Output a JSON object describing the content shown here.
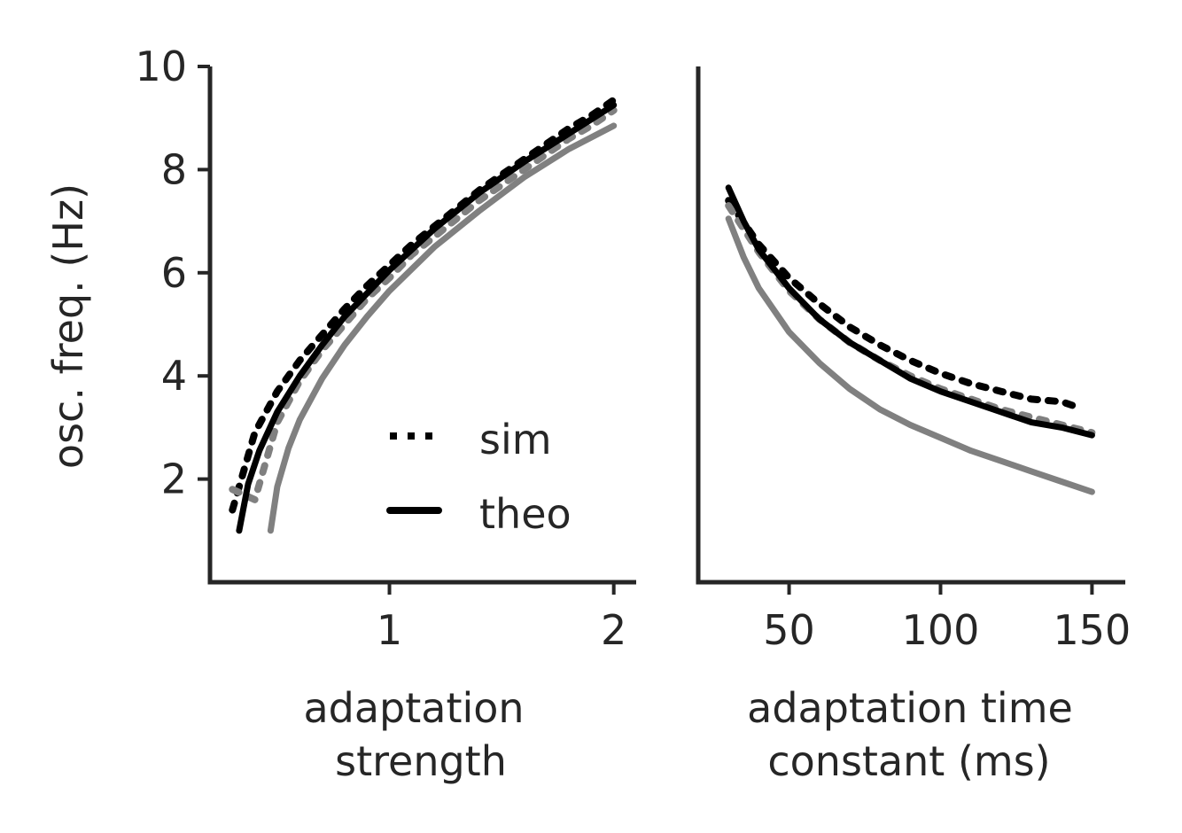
{
  "chart_data": [
    {
      "type": "line",
      "id": "left",
      "xlabel": [
        "adaptation",
        "strength"
      ],
      "ylabel": "osc. freq. (Hz)",
      "xlim": [
        0.2,
        2.1
      ],
      "ylim": [
        0.0,
        10.0
      ],
      "xticks": [
        1,
        2
      ],
      "xtick_labels": [
        "1",
        "2"
      ],
      "yticks": [
        2,
        4,
        6,
        8,
        10
      ],
      "ytick_labels": [
        "2",
        "4",
        "6",
        "8",
        "10"
      ],
      "series": [
        {
          "name": "sim",
          "color": "#000000",
          "style": "dotted",
          "x": [
            0.3,
            0.4,
            0.5,
            0.6,
            0.7,
            0.8,
            0.9,
            1.0,
            1.1,
            1.2,
            1.3,
            1.4,
            1.5,
            1.6,
            1.7,
            1.8,
            1.9,
            2.0
          ],
          "y": [
            1.4,
            2.9,
            3.7,
            4.3,
            4.8,
            5.3,
            5.75,
            6.15,
            6.55,
            6.9,
            7.25,
            7.6,
            7.9,
            8.2,
            8.5,
            8.8,
            9.05,
            9.35
          ]
        },
        {
          "color": "#808080",
          "style": "dotted",
          "x": [
            0.3,
            0.4,
            0.5,
            0.6,
            0.7,
            0.8,
            0.9,
            1.0,
            1.1,
            1.2,
            1.3,
            1.4,
            1.5,
            1.6,
            1.7,
            1.8,
            1.9,
            2.0
          ],
          "y": [
            1.8,
            1.6,
            3.1,
            3.9,
            4.5,
            5.0,
            5.5,
            5.9,
            6.35,
            6.7,
            7.05,
            7.4,
            7.7,
            8.0,
            8.3,
            8.6,
            8.85,
            9.15
          ]
        },
        {
          "name": "theo",
          "color": "#000000",
          "style": "solid",
          "x": [
            0.33,
            0.37,
            0.42,
            0.5,
            0.6,
            0.7,
            0.8,
            0.9,
            1.0,
            1.2,
            1.4,
            1.6,
            1.8,
            2.0
          ],
          "y": [
            1.0,
            1.9,
            2.55,
            3.3,
            4.0,
            4.6,
            5.15,
            5.6,
            6.05,
            6.85,
            7.55,
            8.15,
            8.7,
            9.25
          ]
        },
        {
          "color": "#808080",
          "style": "solid",
          "x": [
            0.47,
            0.5,
            0.55,
            0.6,
            0.7,
            0.8,
            0.9,
            1.0,
            1.2,
            1.4,
            1.6,
            1.8,
            2.0
          ],
          "y": [
            1.0,
            1.85,
            2.6,
            3.15,
            3.95,
            4.6,
            5.15,
            5.65,
            6.5,
            7.2,
            7.85,
            8.4,
            8.85
          ]
        }
      ],
      "legend": {
        "location": "lower-right",
        "entries": [
          "sim",
          "theo"
        ]
      }
    },
    {
      "type": "line",
      "id": "right",
      "xlabel": [
        "adaptation time",
        "constant (ms)"
      ],
      "xlim": [
        20,
        161
      ],
      "ylim": [
        0.0,
        10.0
      ],
      "xticks": [
        50,
        100,
        150
      ],
      "xtick_labels": [
        "50",
        "100",
        "150"
      ],
      "series": [
        {
          "name": "sim",
          "color": "#000000",
          "style": "dotted",
          "x": [
            30,
            40,
            50,
            60,
            70,
            80,
            90,
            100,
            110,
            120,
            130,
            140,
            145
          ],
          "y": [
            7.4,
            6.55,
            5.9,
            5.4,
            4.95,
            4.6,
            4.3,
            4.05,
            3.85,
            3.7,
            3.55,
            3.5,
            3.4
          ]
        },
        {
          "color": "#808080",
          "style": "dotted",
          "x": [
            30,
            40,
            50,
            60,
            70,
            80,
            90,
            100,
            110,
            120,
            130,
            140,
            150
          ],
          "y": [
            7.3,
            6.4,
            5.65,
            5.1,
            4.65,
            4.3,
            4.0,
            3.75,
            3.55,
            3.35,
            3.2,
            3.05,
            2.9
          ]
        },
        {
          "color": "#808080",
          "style": "solid",
          "x": [
            30,
            35,
            40,
            50,
            60,
            70,
            80,
            90,
            100,
            110,
            120,
            130,
            140,
            150
          ],
          "y": [
            7.05,
            6.3,
            5.7,
            4.85,
            4.25,
            3.75,
            3.35,
            3.05,
            2.8,
            2.55,
            2.35,
            2.15,
            1.95,
            1.75
          ]
        },
        {
          "color": "#000000",
          "style": "solid",
          "x": [
            30,
            35,
            40,
            50,
            60,
            70,
            80,
            90,
            100,
            110,
            120,
            130,
            140,
            150
          ],
          "y": [
            7.65,
            7.0,
            6.45,
            5.7,
            5.1,
            4.65,
            4.3,
            3.95,
            3.7,
            3.5,
            3.3,
            3.1,
            3.0,
            2.85
          ]
        }
      ]
    }
  ]
}
